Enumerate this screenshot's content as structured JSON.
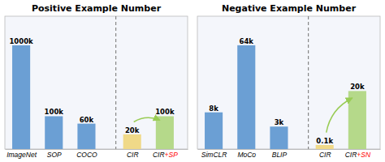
{
  "chart_data": [
    {
      "type": "bar",
      "title": "Positive Example Number",
      "categories": [
        "ImageNet",
        "SOP",
        "COCO",
        "CIR",
        "CIR+SP"
      ],
      "values": [
        1000,
        100,
        60,
        20,
        100
      ],
      "value_labels": [
        "1000k",
        "100k",
        "60k",
        "20k",
        "100k"
      ],
      "colors": [
        "#6b9fd4",
        "#6b9fd4",
        "#6b9fd4",
        "#f0d988",
        "#b5d98a"
      ],
      "ylim": [
        0,
        1638.4
      ],
      "data_labels": true,
      "tick_labels": "x",
      "grid": false
    },
    {
      "type": "bar",
      "title": "Negative Example Number",
      "categories": [
        "SimCLR",
        "MoCo",
        "BLIP",
        "CIR",
        "CIR+SN"
      ],
      "values": [
        8,
        64,
        3,
        0.1,
        20
      ],
      "value_labels": [
        "8k",
        "64k",
        "3k",
        "0.1k",
        "20k"
      ],
      "colors": [
        "#6b9fd4",
        "#6b9fd4",
        "#6b9fd4",
        "#f0d988",
        "#b5d98a"
      ],
      "ylim": [
        0,
        104.8576
      ],
      "data_labels": true,
      "tick_labels": "x",
      "grid": false
    }
  ]
}
